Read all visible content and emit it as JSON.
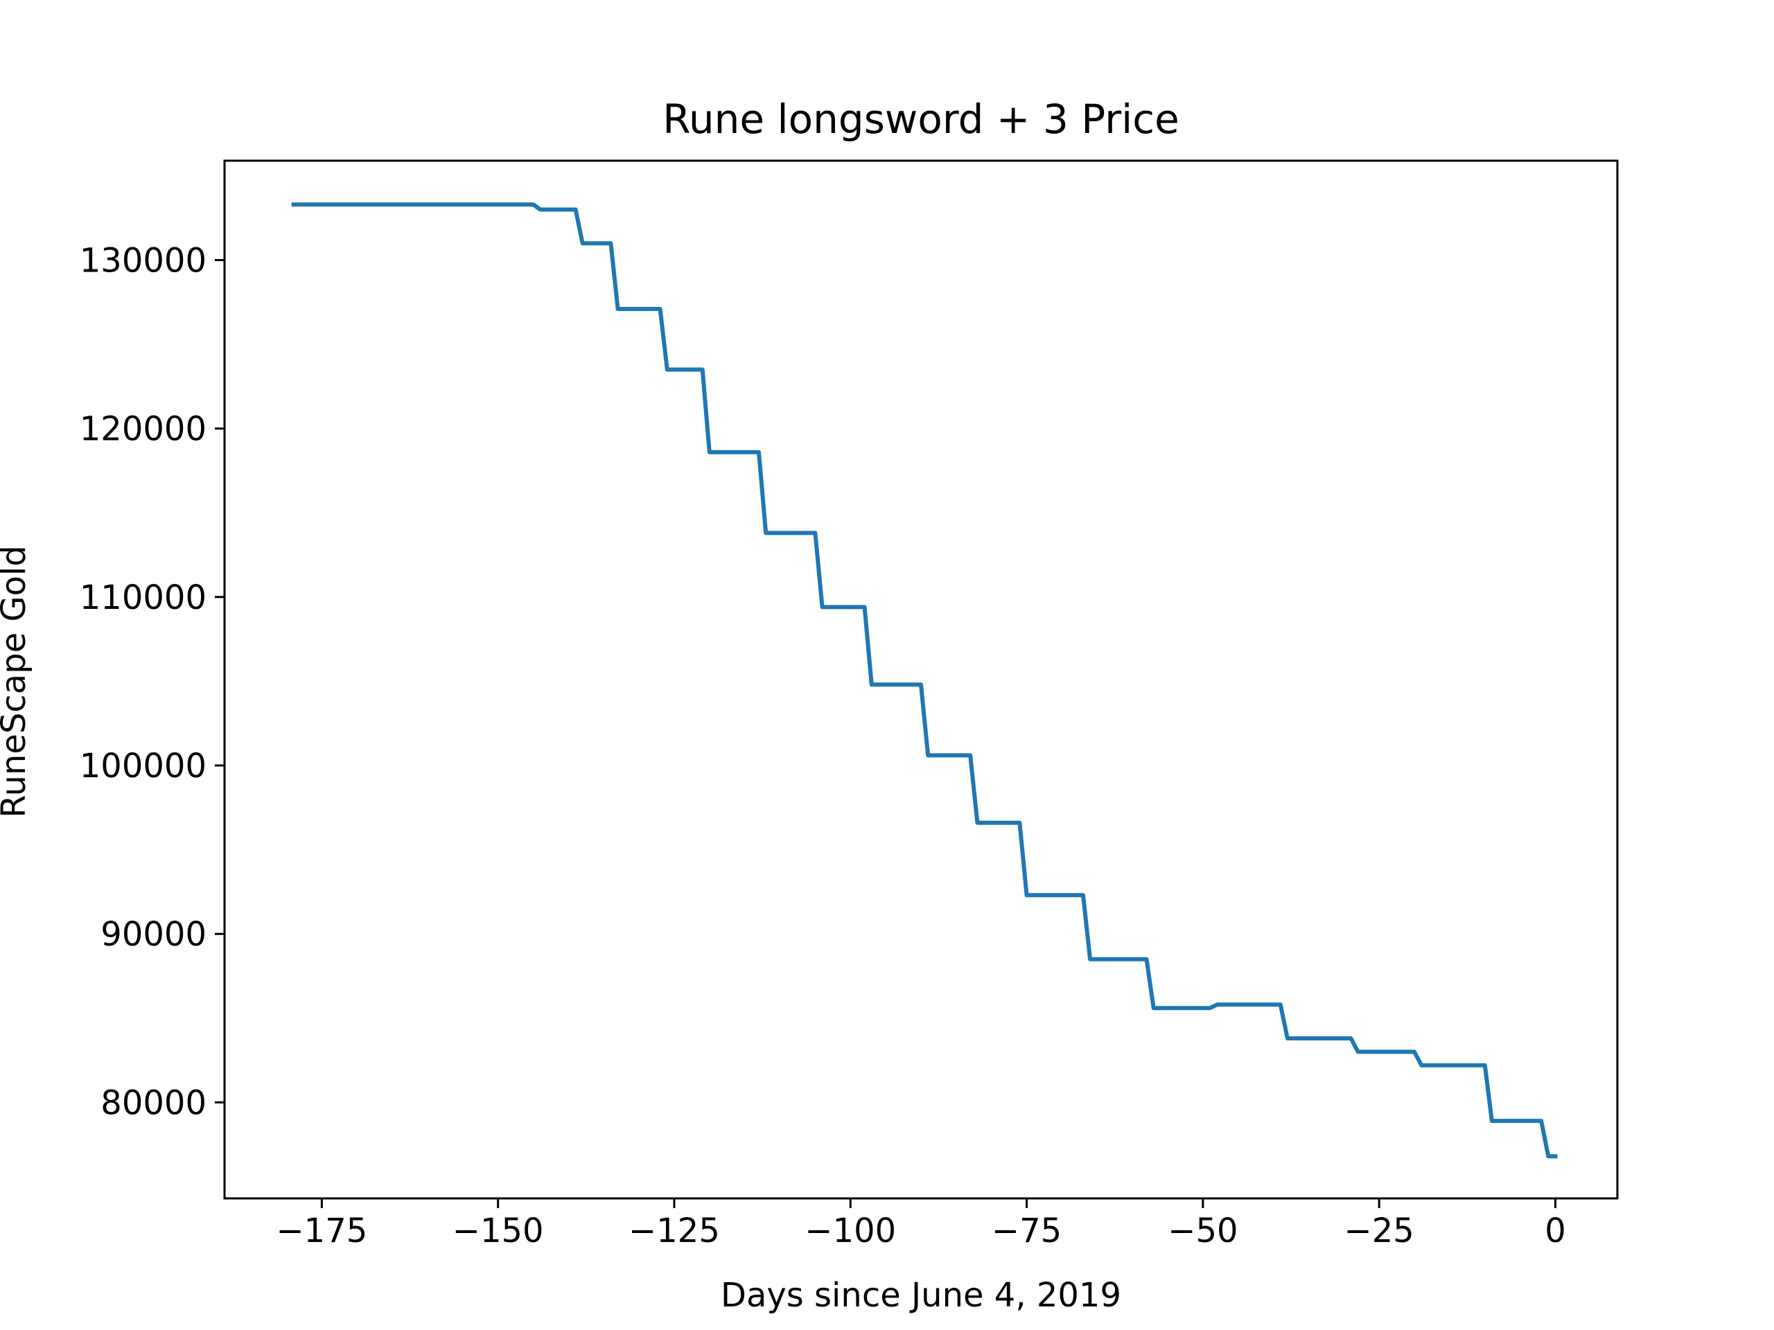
{
  "chart_data": {
    "type": "line",
    "title": "Rune longsword + 3 Price",
    "xlabel": "Days since June 4, 2019",
    "ylabel": "RuneScape Gold",
    "xlim": [
      -188.8,
      8.8
    ],
    "ylim": [
      74300,
      135900
    ],
    "xticks": [
      -175,
      -150,
      -125,
      -100,
      -75,
      -50,
      -25,
      0
    ],
    "xtick_labels": [
      "−175",
      "−150",
      "−125",
      "−100",
      "−75",
      "−50",
      "−25",
      "0"
    ],
    "yticks": [
      80000,
      90000,
      100000,
      110000,
      120000,
      130000
    ],
    "ytick_labels": [
      "80000",
      "90000",
      "100000",
      "110000",
      "120000",
      "130000"
    ],
    "grid": false,
    "colors": {
      "line": "#1f77b4",
      "axes": "#000000",
      "background": "#ffffff"
    },
    "series": [
      {
        "x": [
          -179,
          -145,
          -144,
          -139,
          -138,
          -134,
          -133,
          -127,
          -126,
          -121,
          -120,
          -113,
          -112,
          -105,
          -104,
          -98,
          -97,
          -90,
          -89,
          -83,
          -82,
          -76,
          -75,
          -67,
          -66,
          -58,
          -57,
          -49,
          -48,
          -39,
          -38,
          -29,
          -28,
          -20,
          -19,
          -10,
          -9,
          -2,
          -1,
          0
        ],
        "y": [
          133300,
          133300,
          133000,
          133000,
          131000,
          131000,
          127100,
          127100,
          123500,
          123500,
          118600,
          118600,
          113800,
          113800,
          109400,
          109400,
          104800,
          104800,
          100600,
          100600,
          96600,
          96600,
          92300,
          92300,
          88500,
          88500,
          85600,
          85600,
          85800,
          85800,
          83800,
          83800,
          83000,
          83000,
          82200,
          82200,
          78900,
          78900,
          76800,
          76800
        ]
      }
    ]
  }
}
